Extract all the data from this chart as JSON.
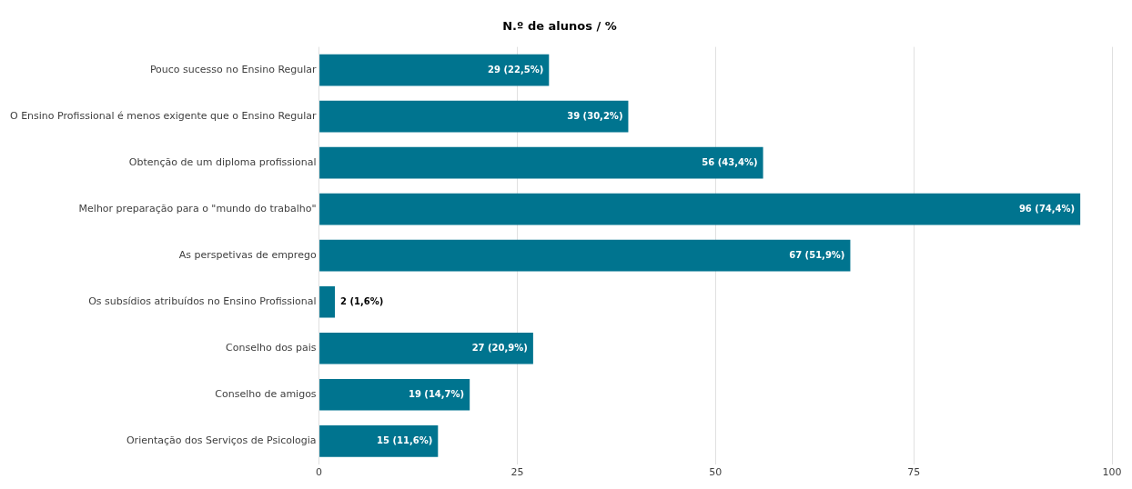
{
  "chart_data": {
    "type": "bar",
    "orientation": "horizontal",
    "title": "N.º de alunos / %",
    "categories": [
      "Pouco sucesso no Ensino Regular",
      "O Ensino Profissional é menos exigente que o Ensino Regular",
      "Obtenção de um diploma profissional",
      "Melhor preparação para o \"mundo do trabalho\"",
      "As perspetivas de emprego",
      "Os subsídios atribuídos no Ensino Profissional",
      "Conselho dos pais",
      "Conselho de amigos",
      "Orientação dos Serviços de Psicologia"
    ],
    "values": [
      29,
      39,
      56,
      96,
      67,
      2,
      27,
      19,
      15
    ],
    "value_labels": [
      "29 (22,5%)",
      "39 (30,2%)",
      "56 (43,4%)",
      "96 (74,4%)",
      "67 (51,9%)",
      "2 (1,6%)",
      "27 (20,9%)",
      "19 (14,7%)",
      "15 (11,6%)"
    ],
    "color": "#00748f",
    "xlim": [
      0,
      100
    ],
    "xticks": [
      0,
      25,
      50,
      75,
      100
    ],
    "grid": "x",
    "legend": false
  }
}
